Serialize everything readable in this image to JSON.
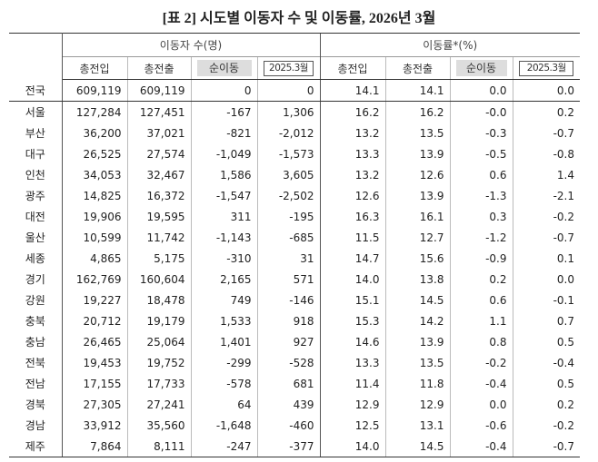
{
  "title": "[표 2] 시도별 이동자 수 및 이동률, 2026년 3월",
  "table": {
    "group_headers": [
      "이동자 수(명)",
      "이동률*(%)"
    ],
    "sub_headers": [
      "총전입",
      "총전출",
      "순이동",
      "2025.3월",
      "총전입",
      "총전출",
      "순이동",
      "2025.3월"
    ],
    "rows": [
      [
        "전국",
        "609,119",
        "609,119",
        "0",
        "0",
        "14.1",
        "14.1",
        "0.0",
        "0.0"
      ],
      [
        "서울",
        "127,284",
        "127,451",
        "-167",
        "1,306",
        "16.2",
        "16.2",
        "-0.0",
        "0.2"
      ],
      [
        "부산",
        "36,200",
        "37,021",
        "-821",
        "-2,012",
        "13.2",
        "13.5",
        "-0.3",
        "-0.7"
      ],
      [
        "대구",
        "26,525",
        "27,574",
        "-1,049",
        "-1,573",
        "13.3",
        "13.9",
        "-0.5",
        "-0.8"
      ],
      [
        "인천",
        "34,053",
        "32,467",
        "1,586",
        "3,605",
        "13.2",
        "12.6",
        "0.6",
        "1.4"
      ],
      [
        "광주",
        "14,825",
        "16,372",
        "-1,547",
        "-2,502",
        "12.6",
        "13.9",
        "-1.3",
        "-2.1"
      ],
      [
        "대전",
        "19,906",
        "19,595",
        "311",
        "-195",
        "16.3",
        "16.1",
        "0.3",
        "-0.2"
      ],
      [
        "울산",
        "10,599",
        "11,742",
        "-1,143",
        "-685",
        "11.5",
        "12.7",
        "-1.2",
        "-0.7"
      ],
      [
        "세종",
        "4,865",
        "5,175",
        "-310",
        "31",
        "14.7",
        "15.6",
        "-0.9",
        "0.1"
      ],
      [
        "경기",
        "162,769",
        "160,604",
        "2,165",
        "571",
        "14.0",
        "13.8",
        "0.2",
        "0.0"
      ],
      [
        "강원",
        "19,227",
        "18,478",
        "749",
        "-146",
        "15.1",
        "14.5",
        "0.6",
        "-0.1"
      ],
      [
        "충북",
        "20,712",
        "19,179",
        "1,533",
        "918",
        "15.3",
        "14.2",
        "1.1",
        "0.7"
      ],
      [
        "충남",
        "26,465",
        "25,064",
        "1,401",
        "927",
        "14.6",
        "13.9",
        "0.8",
        "0.5"
      ],
      [
        "전북",
        "19,453",
        "19,752",
        "-299",
        "-528",
        "13.3",
        "13.5",
        "-0.2",
        "-0.4"
      ],
      [
        "전남",
        "17,155",
        "17,733",
        "-578",
        "681",
        "11.4",
        "11.8",
        "-0.4",
        "0.5"
      ],
      [
        "경북",
        "27,305",
        "27,241",
        "64",
        "439",
        "12.9",
        "12.9",
        "0.0",
        "0.2"
      ],
      [
        "경남",
        "33,912",
        "35,560",
        "-1,648",
        "-460",
        "12.5",
        "13.1",
        "-0.6",
        "-0.2"
      ],
      [
        "제주",
        "7,864",
        "8,111",
        "-247",
        "-377",
        "14.0",
        "14.5",
        "-0.4",
        "-0.7"
      ]
    ]
  }
}
